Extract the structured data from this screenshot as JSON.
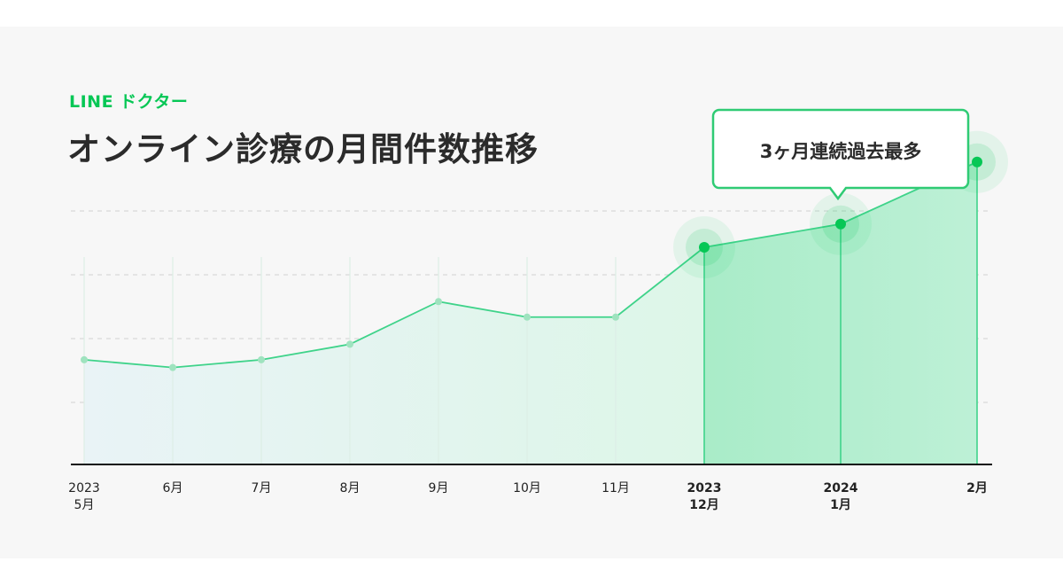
{
  "brand": {
    "name": "LINE ドクター",
    "color": "#06c755"
  },
  "title": "オンライン診療の月間件数推移",
  "callout": {
    "text": "3ヶ月連続過去最多",
    "border_color": "#2fcb74"
  },
  "chart_data": {
    "type": "area",
    "title": "オンライン診療の月間件数推移",
    "y_axis_labels_shown": false,
    "grid": "horizontal dashed",
    "x": [
      {
        "line1": "2023",
        "line2": "5月",
        "bold": false
      },
      {
        "line1": "6月",
        "line2": "",
        "bold": false
      },
      {
        "line1": "7月",
        "line2": "",
        "bold": false
      },
      {
        "line1": "8月",
        "line2": "",
        "bold": false
      },
      {
        "line1": "9月",
        "line2": "",
        "bold": false
      },
      {
        "line1": "10月",
        "line2": "",
        "bold": false
      },
      {
        "line1": "11月",
        "line2": "",
        "bold": false
      },
      {
        "line1": "2023",
        "line2": "12月",
        "bold": true
      },
      {
        "line1": "2024",
        "line2": "1月",
        "bold": true
      },
      {
        "line1": "2月",
        "line2": "",
        "bold": true
      }
    ],
    "series": [
      {
        "values": [
          2.7,
          2.5,
          2.7,
          3.1,
          4.2,
          3.8,
          3.8,
          5.6,
          6.2,
          7.8
        ],
        "highlighted_from_index": 7
      }
    ],
    "ylim": [
      0,
      8
    ],
    "colors": {
      "line": "#3fd38a",
      "highlight": "#06c755",
      "area_light": "#e4f5ef",
      "area_dark": "#b5efd0"
    }
  }
}
